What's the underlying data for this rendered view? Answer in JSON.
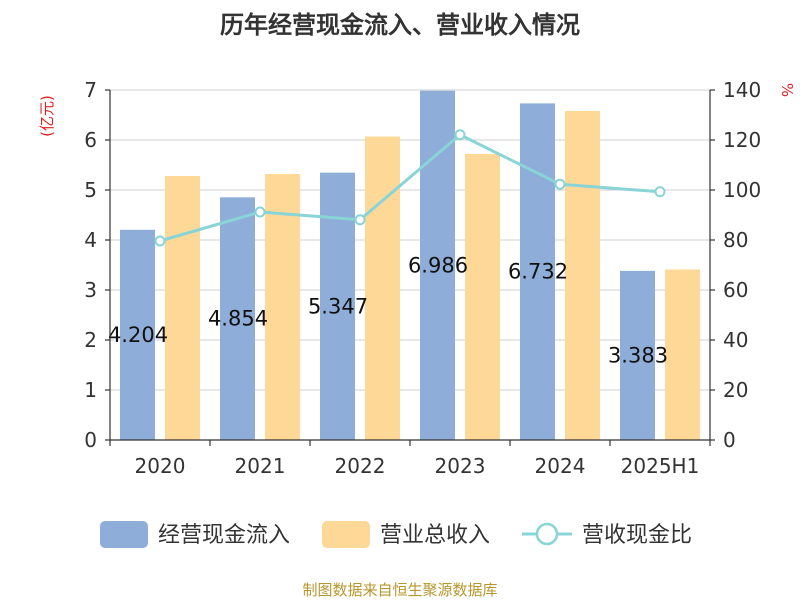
{
  "chart_data": {
    "type": "bar",
    "title": "历年经营现金流入、营业收入情况",
    "categories": [
      "2020",
      "2021",
      "2022",
      "2023",
      "2024",
      "2025H1"
    ],
    "y_left": {
      "unit_label": "(亿元)",
      "ylim": [
        0,
        7
      ],
      "ticks": [
        0,
        1,
        2,
        3,
        4,
        5,
        6,
        7
      ]
    },
    "y_right": {
      "unit_label": "%",
      "ylim": [
        0,
        140
      ],
      "ticks": [
        0,
        20,
        40,
        60,
        80,
        100,
        120,
        140
      ]
    },
    "grid": true,
    "legend_position": "bottom",
    "series": [
      {
        "name": "经营现金流入",
        "type": "bar",
        "axis": "left",
        "color": "#8eadd8",
        "values": [
          4.204,
          4.854,
          5.347,
          6.986,
          6.732,
          3.383
        ],
        "labels": [
          "4.204",
          "4.854",
          "5.347",
          "6.986",
          "6.732",
          "3.383"
        ]
      },
      {
        "name": "营业总收入",
        "type": "bar",
        "axis": "left",
        "color": "#fdd897",
        "values": [
          5.28,
          5.32,
          6.07,
          5.72,
          6.58,
          3.41
        ]
      },
      {
        "name": "营收现金比",
        "type": "line",
        "axis": "right",
        "color": "#88d4d6",
        "values": [
          79.6,
          91.2,
          88.1,
          122.1,
          102.3,
          99.3
        ]
      }
    ],
    "source": "制图数据来自恒生聚源数据库"
  }
}
